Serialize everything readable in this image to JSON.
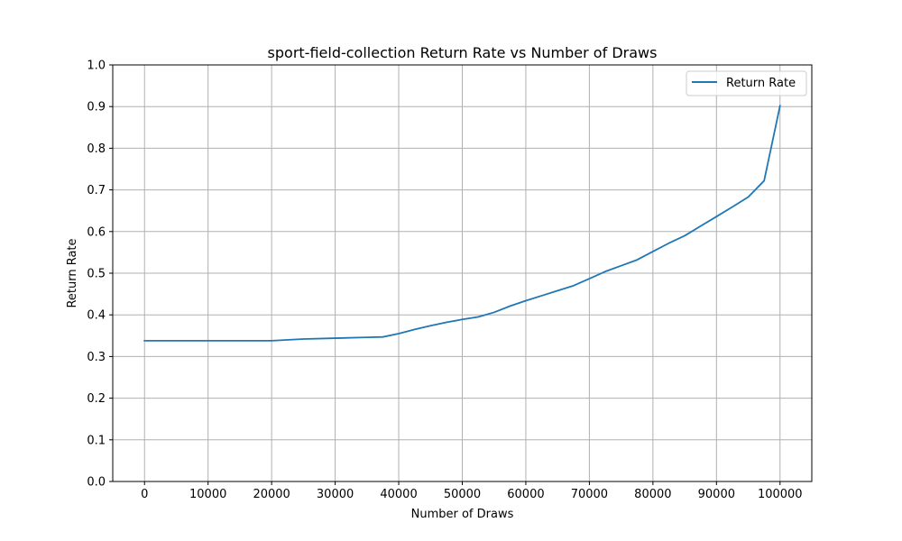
{
  "chart_data": {
    "type": "line",
    "title": "sport-field-collection Return Rate vs Number of Draws",
    "xlabel": "Number of Draws",
    "ylabel": "Return Rate",
    "xlim": [
      -5000,
      105000
    ],
    "ylim": [
      0.0,
      1.0
    ],
    "x_ticks": [
      0,
      10000,
      20000,
      30000,
      40000,
      50000,
      60000,
      70000,
      80000,
      90000,
      100000
    ],
    "y_ticks": [
      0.0,
      0.1,
      0.2,
      0.3,
      0.4,
      0.5,
      0.6,
      0.7,
      0.8,
      0.9,
      1.0
    ],
    "x_tick_labels": [
      "0",
      "10000",
      "20000",
      "30000",
      "40000",
      "50000",
      "60000",
      "70000",
      "80000",
      "90000",
      "100000"
    ],
    "y_tick_labels": [
      "0.0",
      "0.1",
      "0.2",
      "0.3",
      "0.4",
      "0.5",
      "0.6",
      "0.7",
      "0.8",
      "0.9",
      "1.0"
    ],
    "grid": true,
    "legend_position": "top-right",
    "series": [
      {
        "name": "Return Rate",
        "color": "#1f77b4",
        "x": [
          0,
          5000,
          10000,
          15000,
          20000,
          25000,
          30000,
          35000,
          37500,
          40000,
          42500,
          45000,
          47500,
          50000,
          52500,
          55000,
          57500,
          60000,
          62500,
          65000,
          67500,
          70000,
          72500,
          75000,
          77500,
          80000,
          82500,
          85000,
          87500,
          90000,
          92500,
          95000,
          97500,
          100000
        ],
        "y": [
          0.338,
          0.338,
          0.338,
          0.338,
          0.338,
          0.342,
          0.344,
          0.346,
          0.347,
          0.355,
          0.365,
          0.374,
          0.382,
          0.389,
          0.395,
          0.406,
          0.421,
          0.434,
          0.446,
          0.458,
          0.47,
          0.487,
          0.504,
          0.518,
          0.532,
          0.552,
          0.572,
          0.59,
          0.613,
          0.636,
          0.659,
          0.683,
          0.722,
          0.902
        ]
      }
    ]
  }
}
